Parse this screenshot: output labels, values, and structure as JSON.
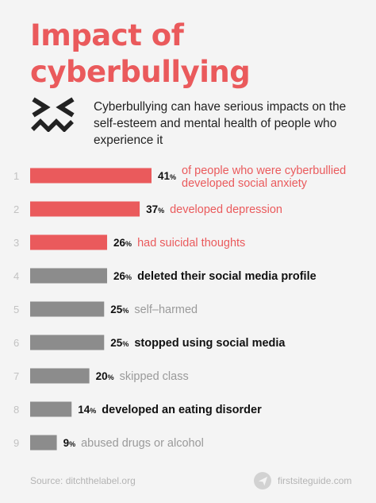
{
  "title_line1": "Impact of",
  "title_line2": "cyberbullying",
  "intro": "Cyberbullying can have serious impacts on the self-esteem and mental health of people who experience it",
  "footer": {
    "source": "Source: ditchthelabel.org",
    "logo": "firstsiteguide.com"
  },
  "colors": {
    "accent": "#ea5a5c",
    "bar_highlight": "#ea5a5c",
    "bar_neutral": "#8c8c8c",
    "text_dark": "#111111",
    "text_muted": "#9a9a9a"
  },
  "chart_data": {
    "type": "bar",
    "orientation": "horizontal",
    "unit": "%",
    "xlim": [
      0,
      41
    ],
    "items": [
      {
        "rank": "1",
        "value": 41,
        "label": [
          "of people who were cyberbullied",
          "developed social anxiety"
        ],
        "style": "highlight"
      },
      {
        "rank": "2",
        "value": 37,
        "label": [
          "developed depression"
        ],
        "style": "highlight"
      },
      {
        "rank": "3",
        "value": 26,
        "label": [
          "had suicidal thoughts"
        ],
        "style": "highlight"
      },
      {
        "rank": "4",
        "value": 26,
        "label": [
          "deleted their social media profile"
        ],
        "style": "dark"
      },
      {
        "rank": "5",
        "value": 25,
        "label": [
          "self–harmed"
        ],
        "style": "muted"
      },
      {
        "rank": "6",
        "value": 25,
        "label": [
          "stopped using social media"
        ],
        "style": "dark"
      },
      {
        "rank": "7",
        "value": 20,
        "label": [
          "skipped class"
        ],
        "style": "muted"
      },
      {
        "rank": "8",
        "value": 14,
        "label": [
          "developed an eating disorder"
        ],
        "style": "dark"
      },
      {
        "rank": "9",
        "value": 9,
        "label": [
          "abused drugs or alcohol"
        ],
        "style": "muted"
      }
    ]
  }
}
